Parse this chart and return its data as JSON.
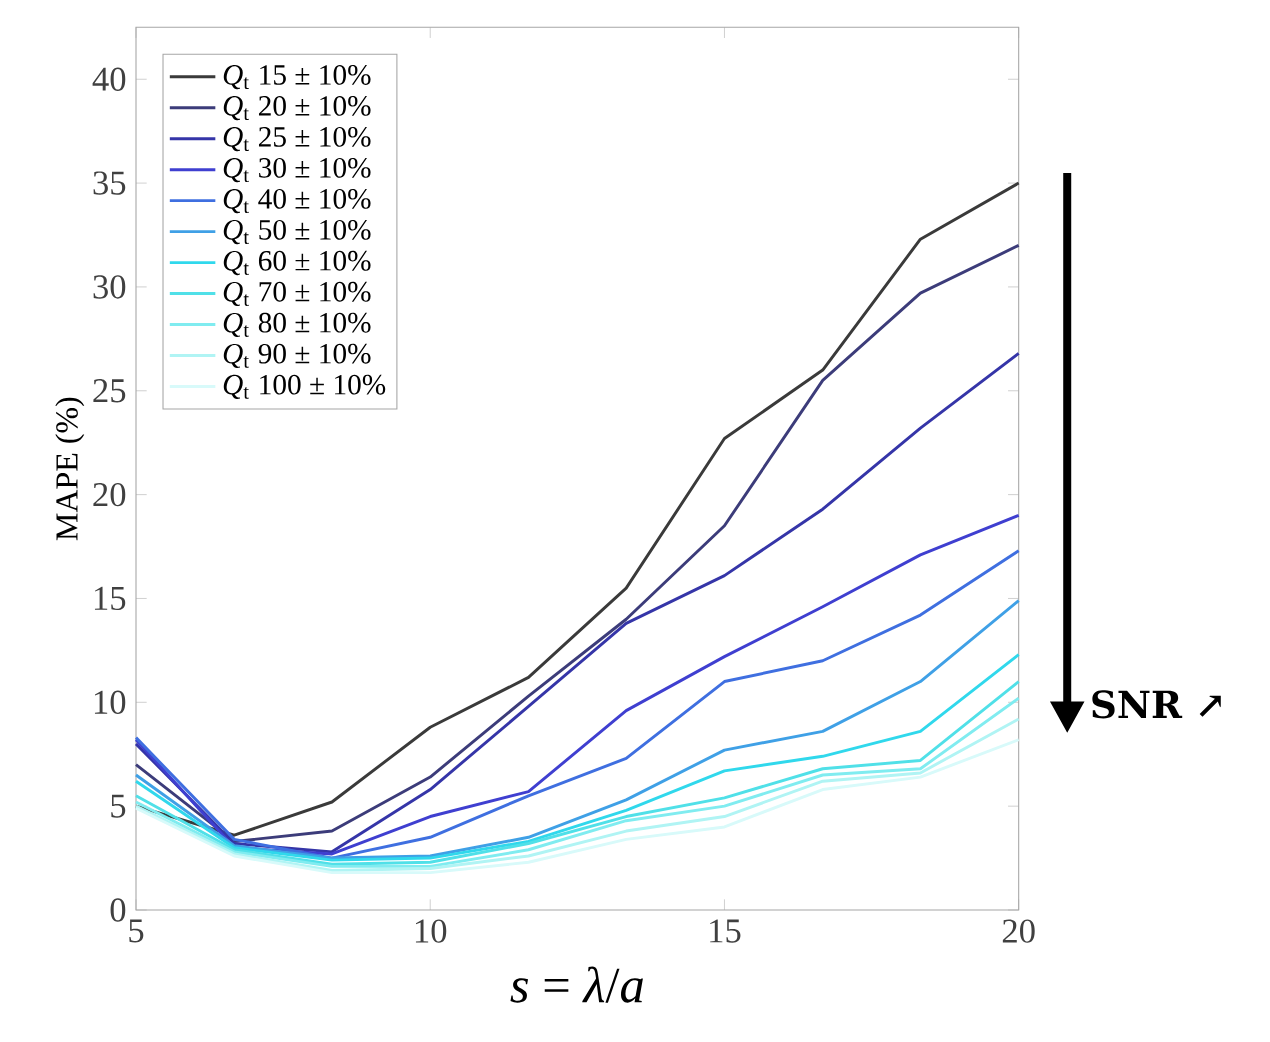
{
  "chart_data": {
    "type": "line",
    "xlabel": "*s* = *λ*/*a*",
    "ylabel": "MAPE (%)",
    "x": [
      5,
      6.67,
      8.33,
      10,
      11.67,
      13.33,
      15,
      16.67,
      18.33,
      20
    ],
    "xlim": [
      5,
      20
    ],
    "xticks": [
      5,
      10,
      15,
      20
    ],
    "ylim": [
      0,
      42.5
    ],
    "yticks": [
      0,
      5,
      10,
      15,
      20,
      25,
      30,
      35,
      40
    ],
    "grid": false,
    "legend": "top left",
    "marker": "none",
    "line_style": "solid",
    "annotations": [
      "**SNR ↗**"
    ],
    "series": [
      {
        "name": "*Q*$_{t}$ 15 ± 10%",
        "color": "#3a3a3a",
        "values": [
          5.0,
          3.6,
          5.2,
          8.8,
          11.2,
          15.5,
          22.7,
          26,
          32.3,
          35.0
        ]
      },
      {
        "name": "*Q*$_{t}$ 20 ± 10%",
        "color": "#3c3c7a",
        "values": [
          7.0,
          3.3,
          3.8,
          6.4,
          10.3,
          14,
          18.5,
          25.5,
          29.7,
          32.0
        ]
      },
      {
        "name": "*Q*$_{t}$ 25 ± 10%",
        "color": "#3535a8",
        "values": [
          8.0,
          3.2,
          2.8,
          5.8,
          9.8,
          13.8,
          16.1,
          19.3,
          23.2,
          26.8
        ]
      },
      {
        "name": "*Q*$_{t}$ 30 ± 10%",
        "color": "#3f3fd0",
        "values": [
          8.2,
          3.0,
          2.7,
          4.5,
          5.7,
          9.6,
          12.2,
          14.6,
          17.1,
          19.0
        ]
      },
      {
        "name": "*Q*$_{t}$ 40 ± 10%",
        "color": "#3f6fe0",
        "values": [
          8.3,
          3.4,
          2.5,
          3.5,
          5.5,
          7.3,
          11.0,
          12.0,
          14.2,
          17.3
        ]
      },
      {
        "name": "*Q*$_{t}$ 50 ± 10%",
        "color": "#3fa0e6",
        "values": [
          6.5,
          3.1,
          2.5,
          2.6,
          3.5,
          5.3,
          7.7,
          8.6,
          11.0,
          14.9
        ]
      },
      {
        "name": "*Q*$_{t}$ 60 ± 10%",
        "color": "#30d8ec",
        "values": [
          6.2,
          3.0,
          2.4,
          2.5,
          3.3,
          4.8,
          6.7,
          7.4,
          8.6,
          12.3
        ]
      },
      {
        "name": "*Q*$_{t}$ 70 ± 10%",
        "color": "#50e0e8",
        "values": [
          5.5,
          2.9,
          2.2,
          2.3,
          3.2,
          4.5,
          5.4,
          6.8,
          7.2,
          11.0
        ]
      },
      {
        "name": "*Q*$_{t}$ 80 ± 10%",
        "color": "#80ecf0",
        "values": [
          5.2,
          2.8,
          2.1,
          2.1,
          2.9,
          4.3,
          5.0,
          6.5,
          6.8,
          10.2
        ]
      },
      {
        "name": "*Q*$_{t}$ 90 ± 10%",
        "color": "#b0f4f4",
        "values": [
          5.0,
          2.7,
          1.9,
          2.0,
          2.6,
          3.8,
          4.5,
          6.2,
          6.6,
          9.2
        ]
      },
      {
        "name": "*Q*$_{t}$ 100 ± 10%",
        "color": "#d8fafa",
        "values": [
          4.9,
          2.6,
          1.8,
          1.8,
          2.3,
          3.4,
          4.0,
          5.8,
          6.4,
          8.2
        ]
      }
    ]
  }
}
